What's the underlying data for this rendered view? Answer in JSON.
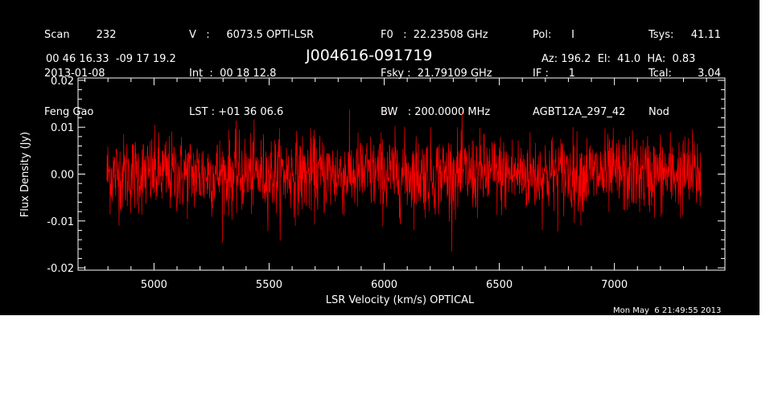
{
  "header": {
    "col1": [
      "Scan        232",
      "2013-01-08",
      "Feng Gao"
    ],
    "col2": [
      "V   :     6073.5 OPTI-LSR",
      "Int  :  00 18 12.8",
      "LST : +01 36 06.6"
    ],
    "col3": [
      "F0   :  22.23508 GHz",
      "Fsky :  21.79109 GHz",
      "BW   : 200.0000 MHz"
    ],
    "col4": [
      "Pol:      I",
      "IF :      1",
      "AGBT12A_297_42"
    ],
    "col5": [
      "Tsys:",
      "Tcal:",
      "Nod"
    ],
    "col5_values": [
      "41.11",
      "3.04",
      ""
    ],
    "coords": "00 46 16.33  -09 17 19.2",
    "source": "J004616-091719",
    "azelha": "Az: 196.2  El:  41.0  HA:  0.83",
    "timestamp": "Mon May  6 21:49:55 2013"
  },
  "chart_data": {
    "type": "line",
    "xlabel": "LSR Velocity (km/s) OPTICAL",
    "ylabel": "Flux Density (Jy)",
    "xlim": [
      4670,
      7480
    ],
    "ylim": [
      -0.0205,
      0.0205
    ],
    "x_ticks": [
      5000,
      5500,
      6000,
      6500,
      7000
    ],
    "x_tick_labels": [
      "5000",
      "5500",
      "6000",
      "6500",
      "7000"
    ],
    "y_ticks": [
      -0.02,
      -0.01,
      0.0,
      0.01,
      0.02
    ],
    "y_tick_labels": [
      "-0.02",
      "-0.01",
      "0.00",
      "0.01",
      "0.02"
    ],
    "series": [
      {
        "color": "#ff0000",
        "description": "noise-like spectrum, mean ~0.0 Jy, scatter ~0.004 Jy, extremes about +0.014 / -0.016 Jy",
        "x_range": [
          4795,
          7375
        ],
        "n_points": 1800,
        "mean": 0.0,
        "sigma": 0.0042
      }
    ],
    "grid": false,
    "background": "#000000",
    "axis_color": "#ffffff"
  }
}
